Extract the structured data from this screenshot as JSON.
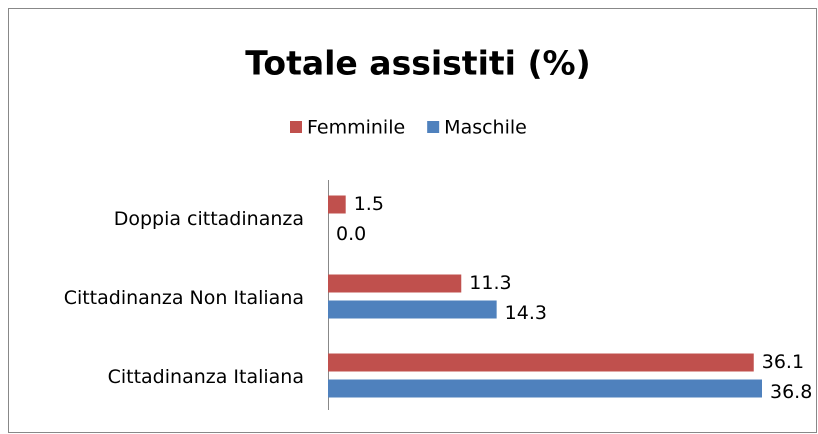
{
  "chart_data": {
    "type": "bar",
    "orientation": "horizontal",
    "title": "Totale assistiti (%)",
    "categories": [
      "Doppia cittadinanza",
      "Cittadinanza Non Italiana",
      "Cittadinanza Italiana"
    ],
    "series": [
      {
        "name": "Femminile",
        "color": "#c0504d",
        "values": [
          1.5,
          11.3,
          36.1
        ],
        "value_labels": [
          "1.5",
          "11.3",
          "36.1"
        ]
      },
      {
        "name": "Maschile",
        "color": "#4f81bd",
        "values": [
          0.0,
          14.3,
          36.8
        ],
        "value_labels": [
          "0.0",
          "14.3",
          "36.8"
        ]
      }
    ],
    "legend": "top"
  }
}
